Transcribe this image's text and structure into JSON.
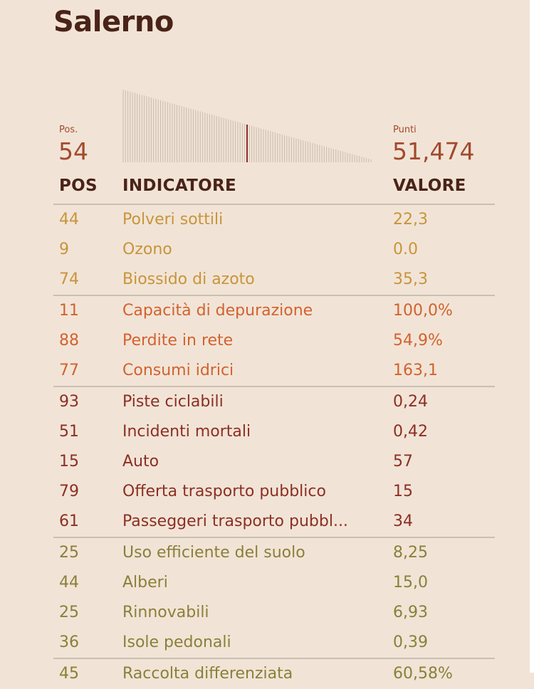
{
  "city": "Salerno",
  "summary": {
    "pos_label": "Pos.",
    "pos_value": "54",
    "points_label": "Punti",
    "points_value": "51,474"
  },
  "ranking_bars": {
    "total": 107,
    "highlight_rank": 54,
    "highlight_color": "#8c2f24"
  },
  "table": {
    "headers": {
      "pos": "POS",
      "indicator": "INDICATORE",
      "value": "VALORE"
    },
    "groups": [
      {
        "color": "#c8943b",
        "rows": [
          {
            "pos": "44",
            "indicator": "Polveri sottili",
            "value": "22,3"
          },
          {
            "pos": "9",
            "indicator": "Ozono",
            "value": "0.0"
          },
          {
            "pos": "74",
            "indicator": "Biossido di azoto",
            "value": "35,3"
          }
        ]
      },
      {
        "color": "#d2622f",
        "rows": [
          {
            "pos": "11",
            "indicator": "Capacità di depurazione",
            "value": "100,0%"
          },
          {
            "pos": "88",
            "indicator": "Perdite in rete",
            "value": "54,9%"
          },
          {
            "pos": "77",
            "indicator": "Consumi idrici",
            "value": "163,1"
          }
        ]
      },
      {
        "color": "#8c2f24",
        "rows": [
          {
            "pos": "93",
            "indicator": "Piste ciclabili",
            "value": "0,24"
          },
          {
            "pos": "51",
            "indicator": "Incidenti mortali",
            "value": "0,42"
          },
          {
            "pos": "15",
            "indicator": "Auto",
            "value": "57"
          },
          {
            "pos": "79",
            "indicator": "Offerta trasporto pubblico",
            "value": "15"
          },
          {
            "pos": "61",
            "indicator": "Passeggeri trasporto pubbl...",
            "value": "34"
          }
        ]
      },
      {
        "color": "#8a7f3a",
        "rows": [
          {
            "pos": "25",
            "indicator": "Uso efficiente del suolo",
            "value": "8,25"
          },
          {
            "pos": "44",
            "indicator": "Alberi",
            "value": "15,0"
          },
          {
            "pos": "25",
            "indicator": "Rinnovabili",
            "value": "6,93"
          },
          {
            "pos": "36",
            "indicator": "Isole pedonali",
            "value": "0,39"
          }
        ]
      },
      {
        "color": "#8a7f3a",
        "rows": [
          {
            "pos": "45",
            "indicator": "Raccolta differenziata",
            "value": "60,58%"
          }
        ]
      }
    ]
  }
}
